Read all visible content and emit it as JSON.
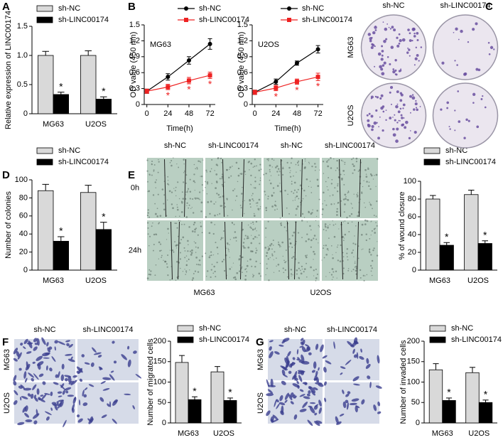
{
  "chart_data": [
    {
      "type": "bar",
      "panel": "A",
      "ylabel": "Relative expression of LINC00174",
      "categories": [
        "MG63",
        "U2OS"
      ],
      "series": [
        {
          "name": "sh-NC",
          "color": "#d9d9d9",
          "values": [
            1.0,
            1.0
          ],
          "errors": [
            0.07,
            0.08
          ],
          "annotations": [
            null,
            null
          ]
        },
        {
          "name": "sh-LINC00174",
          "color": "#000000",
          "values": [
            0.33,
            0.25
          ],
          "errors": [
            0.04,
            0.04
          ],
          "annotations": [
            "*",
            "*"
          ]
        }
      ],
      "ylim": [
        0,
        1.5
      ],
      "yticks": [
        0,
        0.5,
        {
          "value": 1,
          "label": "1.0"
        },
        1.5
      ]
    },
    {
      "type": "line",
      "panel": "B",
      "title": "MG63",
      "ylabel": "OD value (450 nm)",
      "xlabel": "Time(h)",
      "x": [
        0,
        24,
        48,
        72
      ],
      "series": [
        {
          "name": "sh-NC",
          "color": "#000000",
          "marker": "circle",
          "values": [
            0.25,
            0.52,
            0.83,
            1.14
          ],
          "errors": [
            0.04,
            0.06,
            0.07,
            0.1
          ],
          "annotations": [
            null,
            null,
            null,
            null
          ]
        },
        {
          "name": "sh-LINC00174",
          "color": "#ee2222",
          "marker": "square",
          "values": [
            0.25,
            0.33,
            0.45,
            0.55
          ],
          "errors": [
            0.04,
            0.05,
            0.06,
            0.06
          ],
          "annotations": [
            null,
            "*",
            "*",
            "*"
          ]
        }
      ],
      "xlim": [
        -3,
        78
      ],
      "xticks": [
        0,
        24,
        48,
        72
      ],
      "ylim": [
        0,
        1.5
      ],
      "yticks": [
        0,
        0.3,
        0.6,
        0.9,
        1.2,
        1.5
      ]
    },
    {
      "type": "line",
      "title": "U2OS",
      "ylabel": "OD value (450 nm)",
      "xlabel": "Time(h)",
      "x": [
        0,
        24,
        48,
        72
      ],
      "series": [
        {
          "name": "sh-NC",
          "color": "#000000",
          "marker": "circle",
          "values": [
            0.23,
            0.43,
            0.78,
            1.04
          ],
          "errors": [
            0.04,
            0.05,
            0.04,
            0.07
          ],
          "annotations": [
            null,
            null,
            null,
            null
          ]
        },
        {
          "name": "sh-LINC00174",
          "color": "#ee2222",
          "marker": "square",
          "values": [
            0.23,
            0.31,
            0.43,
            0.52
          ],
          "errors": [
            0.04,
            0.05,
            0.05,
            0.07
          ],
          "annotations": [
            null,
            "*",
            "*",
            "*"
          ]
        }
      ],
      "xlim": [
        -3,
        78
      ],
      "xticks": [
        0,
        24,
        48,
        72
      ],
      "ylim": [
        0,
        1.5
      ],
      "yticks": [
        0,
        0.3,
        0.6,
        0.9,
        1.2,
        1.5
      ]
    },
    {
      "type": "bar",
      "panel": "D",
      "ylabel": "Number of colonies",
      "categories": [
        "MG63",
        "U2OS"
      ],
      "series": [
        {
          "name": "sh-NC",
          "color": "#d9d9d9",
          "values": [
            88,
            86
          ],
          "errors": [
            7,
            8
          ],
          "annotations": [
            null,
            null
          ]
        },
        {
          "name": "sh-LINC00174",
          "color": "#000000",
          "values": [
            32,
            45
          ],
          "errors": [
            5,
            8
          ],
          "annotations": [
            "*",
            "*"
          ]
        }
      ],
      "ylim": [
        0,
        100
      ],
      "yticks": [
        0,
        20,
        40,
        60,
        80,
        100
      ]
    },
    {
      "type": "bar",
      "ylabel": "% of wound closure",
      "categories": [
        "MG63",
        "U2OS"
      ],
      "series": [
        {
          "name": "sh-NC",
          "color": "#d9d9d9",
          "values": [
            80,
            85
          ],
          "errors": [
            4,
            5
          ],
          "annotations": [
            null,
            null
          ]
        },
        {
          "name": "sh-LINC00174",
          "color": "#000000",
          "values": [
            28,
            30
          ],
          "errors": [
            3,
            3
          ],
          "annotations": [
            "*",
            "*"
          ]
        }
      ],
      "ylim": [
        0,
        100
      ],
      "yticks": [
        0,
        20,
        40,
        60,
        80,
        100
      ]
    },
    {
      "type": "bar",
      "ylabel": "Number of migrated cells",
      "categories": [
        "MG63",
        "U2OS"
      ],
      "series": [
        {
          "name": "sh-NC",
          "color": "#d9d9d9",
          "values": [
            148,
            125
          ],
          "errors": [
            17,
            13
          ],
          "annotations": [
            null,
            null
          ]
        },
        {
          "name": "sh-LINC00174",
          "color": "#000000",
          "values": [
            57,
            55
          ],
          "errors": [
            7,
            6
          ],
          "annotations": [
            "*",
            "*"
          ]
        }
      ],
      "ylim": [
        0,
        200
      ],
      "yticks": [
        0,
        50,
        100,
        150,
        200
      ]
    },
    {
      "type": "bar",
      "ylabel": "Number of invaded cells",
      "categories": [
        "MG63",
        "U2OS"
      ],
      "series": [
        {
          "name": "sh-NC",
          "color": "#d9d9d9",
          "values": [
            130,
            123
          ],
          "errors": [
            15,
            13
          ],
          "annotations": [
            null,
            null
          ]
        },
        {
          "name": "sh-LINC00174",
          "color": "#000000",
          "values": [
            55,
            50
          ],
          "errors": [
            6,
            6
          ],
          "annotations": [
            "*",
            "*"
          ]
        }
      ],
      "ylim": [
        0,
        200
      ],
      "yticks": [
        0,
        50,
        100,
        150,
        200
      ]
    }
  ],
  "images": [
    {
      "panel": "C",
      "columns": [
        "sh-NC",
        "sh-LINC00174"
      ],
      "rows": [
        "MG63",
        "U2OS"
      ]
    },
    {
      "panel": "E",
      "columns": [
        "sh-NC",
        "sh-LINC00174",
        "sh-NC",
        "sh-LINC00174"
      ],
      "rows": [
        "0h",
        "24h"
      ],
      "groups": [
        "MG63",
        "U2OS"
      ]
    },
    {
      "panel": "F",
      "columns": [
        "sh-NC",
        "sh-LINC00174"
      ],
      "rows": [
        "MG63",
        "U2OS"
      ]
    },
    {
      "panel": "G",
      "columns": [
        "sh-NC",
        "sh-LINC00174"
      ],
      "rows": [
        "MG63",
        "U2OS"
      ]
    }
  ]
}
